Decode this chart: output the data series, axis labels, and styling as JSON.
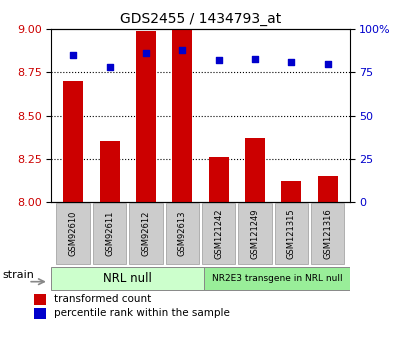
{
  "title": "GDS2455 / 1434793_at",
  "samples": [
    "GSM92610",
    "GSM92611",
    "GSM92612",
    "GSM92613",
    "GSM121242",
    "GSM121249",
    "GSM121315",
    "GSM121316"
  ],
  "transformed_counts": [
    8.7,
    8.35,
    8.99,
    9.0,
    8.26,
    8.37,
    8.12,
    8.15
  ],
  "percentile_ranks": [
    85,
    78,
    86,
    88,
    82,
    83,
    81,
    80
  ],
  "ylim_left": [
    8.0,
    9.0
  ],
  "ylim_right": [
    0,
    100
  ],
  "yticks_left": [
    8.0,
    8.25,
    8.5,
    8.75,
    9.0
  ],
  "yticks_right": [
    0,
    25,
    50,
    75,
    100
  ],
  "bar_color": "#cc0000",
  "dot_color": "#0000cc",
  "group1_label": "NRL null",
  "group2_label": "NR2E3 transgene in NRL null",
  "group1_color": "#ccffcc",
  "group2_color": "#99ee99",
  "group1_count": 4,
  "group2_count": 4,
  "left_axis_color": "#cc0000",
  "right_axis_color": "#0000cc",
  "bar_width": 0.55,
  "label_box_color": "#cccccc",
  "gridline_ticks": [
    8.25,
    8.5,
    8.75
  ]
}
